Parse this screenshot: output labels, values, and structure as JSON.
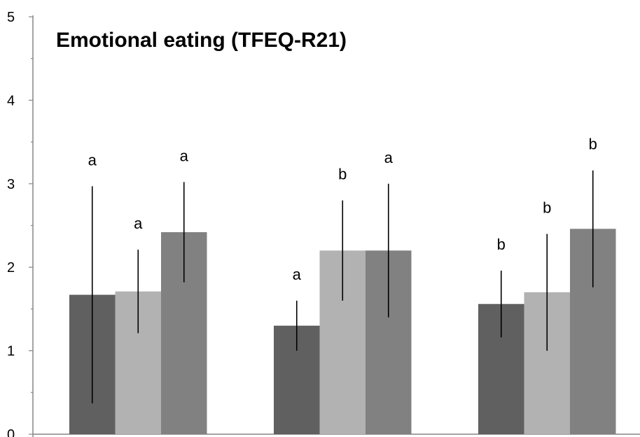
{
  "chart_data": {
    "type": "bar",
    "title": "Emotional  eating (TFEQ-R21)",
    "xlabel": "",
    "ylabel": "",
    "ylim": [
      0,
      5
    ],
    "y_ticks": [
      "0",
      "1",
      "2",
      "3",
      "4",
      "5"
    ],
    "grid": false,
    "legend": "none",
    "categories": [
      "",
      "",
      ""
    ],
    "series": [
      {
        "color": "#606060",
        "values": [
          1.67,
          1.3,
          1.56
        ],
        "error_low": [
          0.37,
          1.0,
          1.16
        ],
        "error_high": [
          2.97,
          1.6,
          1.96
        ],
        "labels": [
          "a",
          "a",
          "b"
        ]
      },
      {
        "color": "#b2b2b2",
        "values": [
          1.71,
          2.2,
          1.7
        ],
        "error_low": [
          1.21,
          1.6,
          1.0
        ],
        "error_high": [
          2.21,
          2.8,
          2.4
        ],
        "labels": [
          "a",
          "b",
          "b"
        ]
      },
      {
        "color": "#818181",
        "values": [
          2.42,
          2.2,
          2.46
        ],
        "error_low": [
          1.82,
          1.4,
          1.76
        ],
        "error_high": [
          3.02,
          3.0,
          3.16
        ],
        "labels": [
          "a",
          "a",
          "b"
        ]
      }
    ]
  }
}
